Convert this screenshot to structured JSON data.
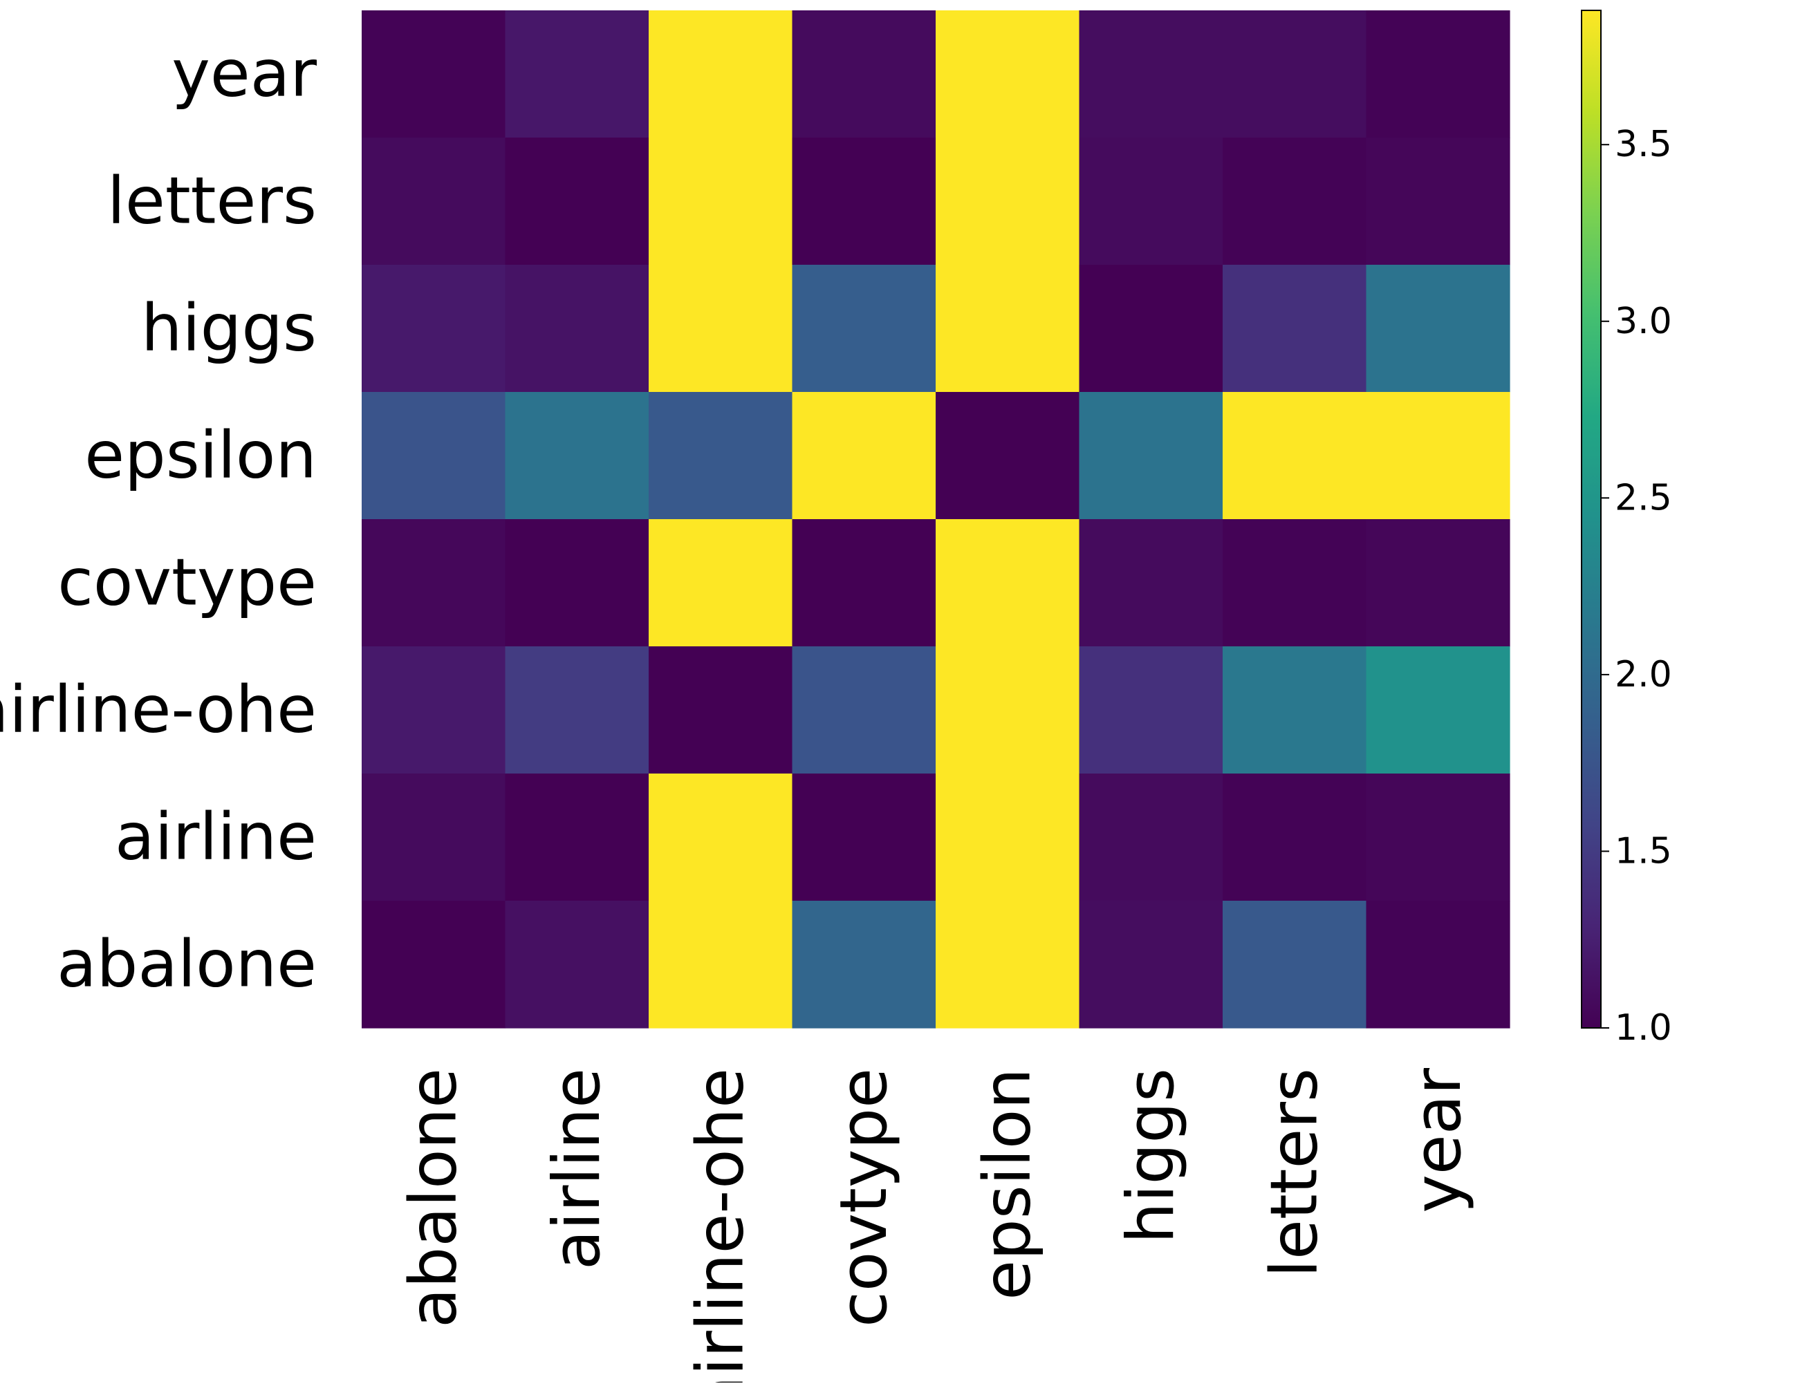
{
  "chart_data": {
    "type": "heatmap",
    "title": "",
    "xlabel": "",
    "ylabel": "",
    "x_categories": [
      "abalone",
      "airline",
      "airline-ohe",
      "covtype",
      "epsilon",
      "higgs",
      "letters",
      "year"
    ],
    "y_categories": [
      "year",
      "letters",
      "higgs",
      "epsilon",
      "covtype",
      "airline-ohe",
      "airline",
      "abalone"
    ],
    "values": [
      [
        1.02,
        1.18,
        3.88,
        1.08,
        3.88,
        1.1,
        1.1,
        1.02
      ],
      [
        1.08,
        1.0,
        3.88,
        1.0,
        3.88,
        1.08,
        1.02,
        1.04
      ],
      [
        1.2,
        1.15,
        3.88,
        1.85,
        3.88,
        1.0,
        1.4,
        2.1
      ],
      [
        1.75,
        2.1,
        1.8,
        3.88,
        1.0,
        2.1,
        3.88,
        3.88
      ],
      [
        1.05,
        1.0,
        3.88,
        1.0,
        3.88,
        1.08,
        1.02,
        1.04
      ],
      [
        1.2,
        1.5,
        1.0,
        1.75,
        3.88,
        1.4,
        2.15,
        2.45
      ],
      [
        1.08,
        1.0,
        3.88,
        1.0,
        3.88,
        1.08,
        1.02,
        1.04
      ],
      [
        1.0,
        1.12,
        3.88,
        1.95,
        3.88,
        1.1,
        1.8,
        1.02
      ]
    ],
    "colormap": "viridis",
    "vmin": 1.0,
    "vmax": 3.88,
    "colorbar": {
      "ticks": [
        1.0,
        1.5,
        2.0,
        2.5,
        3.0,
        3.5
      ],
      "tick_labels": [
        "1.0",
        "1.5",
        "2.0",
        "2.5",
        "3.0",
        "3.5"
      ]
    },
    "grid": false,
    "legend": "colorbar-right"
  }
}
